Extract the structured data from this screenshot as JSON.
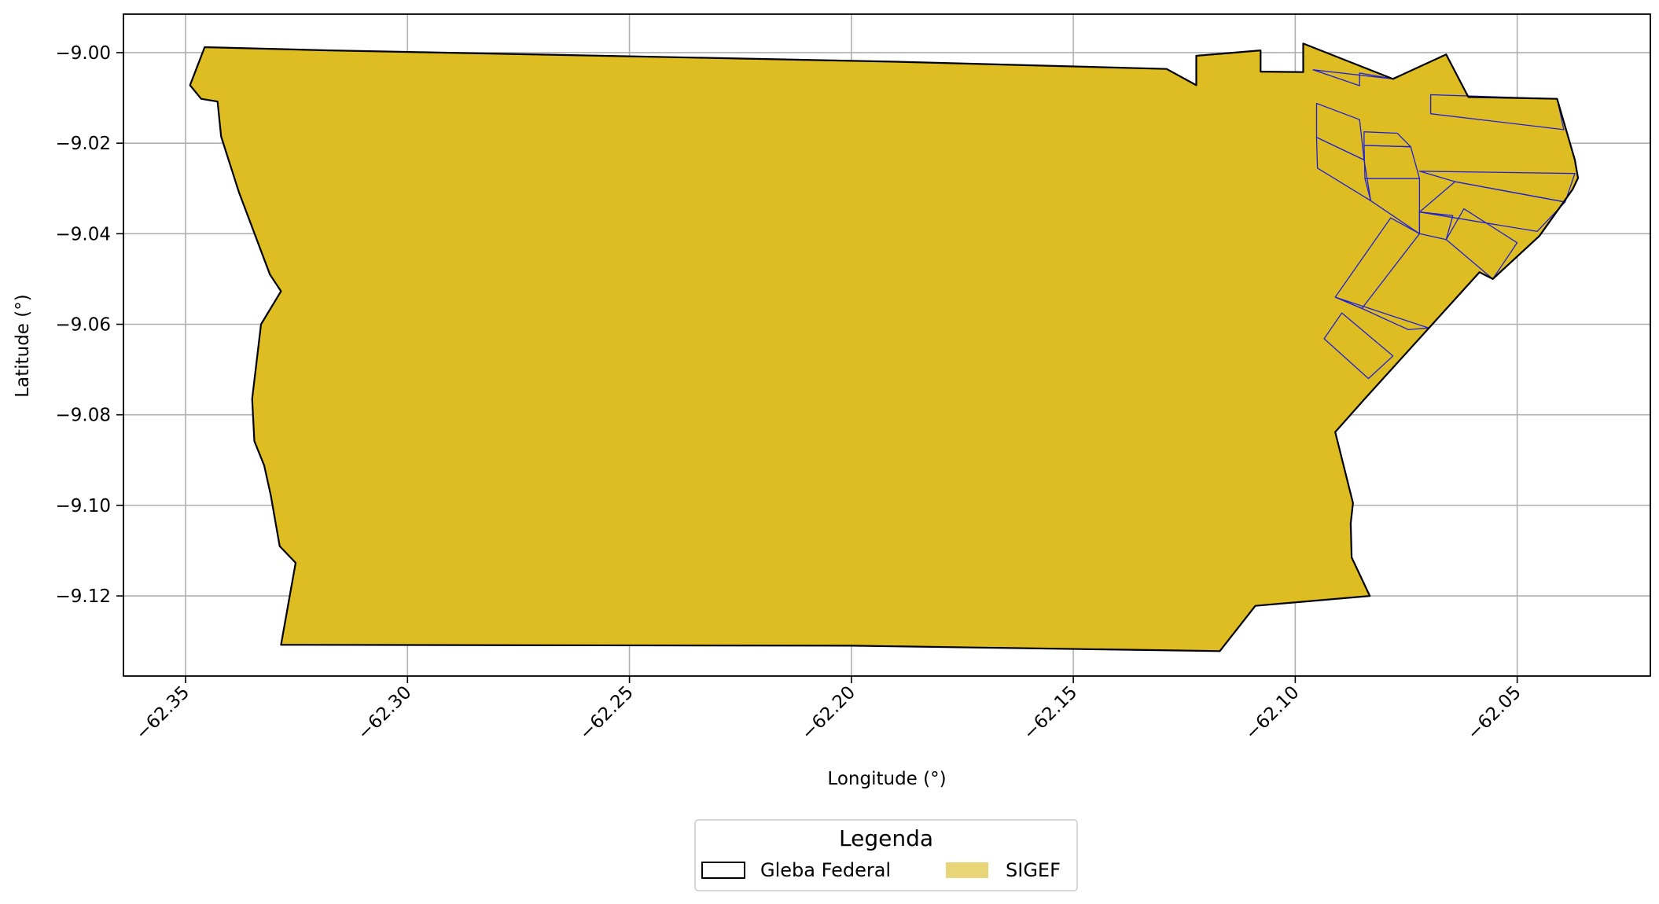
{
  "chart_data": {
    "type": "map",
    "xlabel": "Longitude (°)",
    "ylabel": "Latitude (°)",
    "xlim": [
      -62.364,
      -62.02
    ],
    "ylim": [
      -9.1377,
      -8.9915
    ],
    "xticks": [
      -62.35,
      -62.3,
      -62.25,
      -62.2,
      -62.15,
      -62.1,
      -62.05
    ],
    "xtick_labels": [
      "−62.35",
      "−62.30",
      "−62.25",
      "−62.20",
      "−62.15",
      "−62.10",
      "−62.05"
    ],
    "yticks": [
      -9.0,
      -9.02,
      -9.04,
      -9.06,
      -9.08,
      -9.1,
      -9.12
    ],
    "ytick_labels": [
      "−9.00",
      "−9.02",
      "−9.04",
      "−9.06",
      "−9.08",
      "−9.10",
      "−9.12"
    ],
    "grid": true,
    "xtick_rotation": "45 degrees",
    "legend": {
      "title": "Legenda",
      "placement": "bottom-center, below axes",
      "items": [
        {
          "label": "Gleba Federal",
          "swatch": "outline",
          "edge_color": "#000000",
          "fill_color": "#ffffff"
        },
        {
          "label": "SIGEF",
          "swatch": "filled",
          "fill_color": "#e8d577"
        }
      ]
    },
    "colors": {
      "sigef_fill": "#debd22",
      "sigef_edge": "#1f1fd6",
      "gleba_edge": "#000000",
      "legend_sigef": "#e8d577",
      "grid": "#b0b0b0"
    },
    "gleba_federal": [
      [
        -62.3457,
        -8.9988
      ],
      [
        -62.3175,
        -8.9995
      ],
      [
        -62.25,
        -9.0008
      ],
      [
        -62.19,
        -9.002
      ],
      [
        -62.129,
        -9.0036
      ],
      [
        -62.1223,
        -9.0072
      ],
      [
        -62.1223,
        -9.0007
      ],
      [
        -62.1078,
        -8.9995
      ],
      [
        -62.1078,
        -9.0042
      ],
      [
        -62.0982,
        -9.0043
      ],
      [
        -62.0982,
        -8.998
      ],
      [
        -62.078,
        -9.0058
      ],
      [
        -62.066,
        -9.0004
      ],
      [
        -62.061,
        -9.0098
      ],
      [
        -62.041,
        -9.0102
      ],
      [
        -62.037,
        -9.0237
      ],
      [
        -62.0363,
        -9.0277
      ],
      [
        -62.0375,
        -9.0302
      ],
      [
        -62.045,
        -9.0405
      ],
      [
        -62.0555,
        -9.05
      ],
      [
        -62.0585,
        -9.0485
      ],
      [
        -62.084,
        -9.0761
      ],
      [
        -62.091,
        -9.0838
      ],
      [
        -62.087,
        -9.0995
      ],
      [
        -62.0875,
        -9.104
      ],
      [
        -62.0873,
        -9.1115
      ],
      [
        -62.0832,
        -9.12
      ],
      [
        -62.109,
        -9.1222
      ],
      [
        -62.117,
        -9.1322
      ],
      [
        -62.2,
        -9.131
      ],
      [
        -62.3285,
        -9.1308
      ],
      [
        -62.3252,
        -9.1127
      ],
      [
        -62.3288,
        -9.109
      ],
      [
        -62.3308,
        -9.0978
      ],
      [
        -62.3323,
        -9.0912
      ],
      [
        -62.3345,
        -9.0858
      ],
      [
        -62.335,
        -9.0765
      ],
      [
        -62.333,
        -9.06
      ],
      [
        -62.3285,
        -9.0527
      ],
      [
        -62.331,
        -9.049
      ],
      [
        -62.338,
        -9.0308
      ],
      [
        -62.342,
        -9.0185
      ],
      [
        -62.3428,
        -9.0108
      ],
      [
        -62.3465,
        -9.0102
      ],
      [
        -62.349,
        -9.0072
      ],
      [
        -62.3457,
        -8.9988
      ]
    ],
    "sigef_parcels": [
      [
        [
          -62.0952,
          -9.0112
        ],
        [
          -62.0855,
          -9.0148
        ],
        [
          -62.0845,
          -9.0237
        ],
        [
          -62.0952,
          -9.0187
        ]
      ],
      [
        [
          -62.0952,
          -9.0187
        ],
        [
          -62.0845,
          -9.0237
        ],
        [
          -62.083,
          -9.0327
        ],
        [
          -62.095,
          -9.0255
        ]
      ],
      [
        [
          -62.0845,
          -9.0175
        ],
        [
          -62.077,
          -9.0178
        ],
        [
          -62.074,
          -9.0208
        ],
        [
          -62.0845,
          -9.0205
        ]
      ],
      [
        [
          -62.0845,
          -9.0205
        ],
        [
          -62.074,
          -9.0208
        ],
        [
          -62.072,
          -9.0278
        ],
        [
          -62.0843,
          -9.0278
        ]
      ],
      [
        [
          -62.0843,
          -9.0278
        ],
        [
          -62.072,
          -9.0278
        ],
        [
          -62.072,
          -9.04
        ],
        [
          -62.083,
          -9.0327
        ]
      ],
      [
        [
          -62.096,
          -9.0038
        ],
        [
          -62.0855,
          -9.0073
        ],
        [
          -62.0855,
          -9.0045
        ],
        [
          -62.078,
          -9.0058
        ]
      ],
      [
        [
          -62.0695,
          -9.0093
        ],
        [
          -62.041,
          -9.0102
        ],
        [
          -62.0395,
          -9.017
        ],
        [
          -62.0695,
          -9.0135
        ]
      ],
      [
        [
          -62.072,
          -9.0262
        ],
        [
          -62.037,
          -9.0267
        ],
        [
          -62.0392,
          -9.033
        ],
        [
          -62.064,
          -9.0285
        ]
      ],
      [
        [
          -62.072,
          -9.0352
        ],
        [
          -62.072,
          -9.04
        ],
        [
          -62.066,
          -9.0413
        ],
        [
          -62.0645,
          -9.036
        ]
      ],
      [
        [
          -62.072,
          -9.0352
        ],
        [
          -62.064,
          -9.0285
        ],
        [
          -62.0392,
          -9.033
        ],
        [
          -62.0455,
          -9.0395
        ]
      ],
      [
        [
          -62.0785,
          -9.0365
        ],
        [
          -62.072,
          -9.04
        ],
        [
          -62.085,
          -9.0565
        ],
        [
          -62.091,
          -9.054
        ]
      ],
      [
        [
          -62.091,
          -9.054
        ],
        [
          -62.085,
          -9.0565
        ],
        [
          -62.0745,
          -9.0612
        ],
        [
          -62.07,
          -9.0608
        ]
      ],
      [
        [
          -62.0895,
          -9.0575
        ],
        [
          -62.0935,
          -9.0632
        ],
        [
          -62.0835,
          -9.072
        ],
        [
          -62.078,
          -9.067
        ]
      ],
      [
        [
          -62.062,
          -9.0345
        ],
        [
          -62.05,
          -9.042
        ],
        [
          -62.0555,
          -9.05
        ],
        [
          -62.066,
          -9.0413
        ]
      ]
    ]
  }
}
